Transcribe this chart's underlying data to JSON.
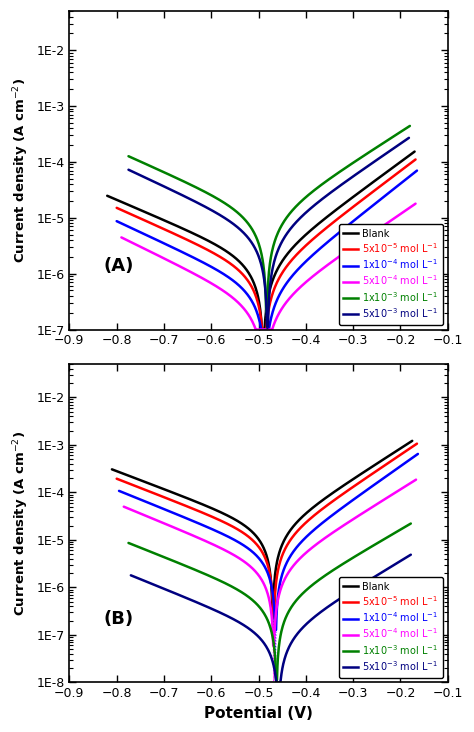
{
  "panel_A": {
    "label": "(A)",
    "ylim": [
      1e-07,
      0.05
    ],
    "yticks": [
      1e-07,
      1e-06,
      1e-05,
      0.0001,
      0.001,
      0.01
    ],
    "curves": [
      {
        "color": "black",
        "Ecorr": -0.49,
        "logIcorr": -5.8,
        "ba": 0.07,
        "bc": 0.12,
        "Ecat_end": -0.82,
        "Ean_end": -0.17
      },
      {
        "color": "red",
        "Ecorr": -0.488,
        "logIcorr": -6.0,
        "ba": 0.068,
        "bc": 0.115,
        "Ecat_end": -0.8,
        "Ean_end": -0.168
      },
      {
        "color": "blue",
        "Ecorr": -0.486,
        "logIcorr": -6.3,
        "ba": 0.065,
        "bc": 0.11,
        "Ecat_end": -0.8,
        "Ean_end": -0.165
      },
      {
        "color": "magenta",
        "Ecorr": -0.488,
        "logIcorr": -6.6,
        "ba": 0.075,
        "bc": 0.105,
        "Ecat_end": -0.79,
        "Ean_end": -0.168
      },
      {
        "color": "green",
        "Ecorr": -0.483,
        "logIcorr": -5.0,
        "ba": 0.08,
        "bc": 0.115,
        "Ecat_end": -0.775,
        "Ean_end": -0.18
      },
      {
        "color": "navy",
        "Ecorr": -0.481,
        "logIcorr": -5.3,
        "ba": 0.075,
        "bc": 0.11,
        "Ecat_end": -0.775,
        "Ean_end": -0.182
      }
    ]
  },
  "panel_B": {
    "label": "(B)",
    "ylim": [
      1e-08,
      0.05
    ],
    "yticks": [
      1e-08,
      1e-07,
      1e-06,
      1e-05,
      0.0001,
      0.001,
      0.01
    ],
    "curves": [
      {
        "color": "black",
        "Ecorr": -0.47,
        "logIcorr": -4.8,
        "ba": 0.068,
        "bc": 0.115,
        "Ecat_end": -0.81,
        "Ean_end": -0.175
      },
      {
        "color": "red",
        "Ecorr": -0.468,
        "logIcorr": -5.0,
        "ba": 0.065,
        "bc": 0.112,
        "Ecat_end": -0.8,
        "Ean_end": -0.165
      },
      {
        "color": "blue",
        "Ecorr": -0.464,
        "logIcorr": -5.3,
        "ba": 0.062,
        "bc": 0.108,
        "Ecat_end": -0.795,
        "Ean_end": -0.163
      },
      {
        "color": "magenta",
        "Ecorr": -0.468,
        "logIcorr": -5.6,
        "ba": 0.07,
        "bc": 0.106,
        "Ecat_end": -0.785,
        "Ean_end": -0.167
      },
      {
        "color": "green",
        "Ecorr": -0.462,
        "logIcorr": -6.3,
        "ba": 0.075,
        "bc": 0.11,
        "Ecat_end": -0.775,
        "Ean_end": -0.178
      },
      {
        "color": "navy",
        "Ecorr": -0.458,
        "logIcorr": -7.0,
        "ba": 0.072,
        "bc": 0.108,
        "Ecat_end": -0.77,
        "Ean_end": -0.178
      }
    ]
  },
  "xlim": [
    -0.9,
    -0.1
  ],
  "xticks": [
    -0.9,
    -0.8,
    -0.7,
    -0.6,
    -0.5,
    -0.4,
    -0.3,
    -0.2,
    -0.1
  ],
  "colors": [
    "black",
    "red",
    "blue",
    "magenta",
    "green",
    "navy"
  ],
  "legend_labels": [
    "Blank",
    "5x10$^{-5}$ mol L$^{-1}$",
    "1x10$^{-4}$ mol L$^{-1}$",
    "5x10$^{-4}$ mol L$^{-1}$",
    "1x10$^{-3}$ mol L$^{-1}$",
    "5x10$^{-3}$ mol L$^{-1}$"
  ],
  "xlabel": "Potential (V)",
  "ylabel": "Current density (A cm$^{-2}$)",
  "linewidth": 1.8
}
